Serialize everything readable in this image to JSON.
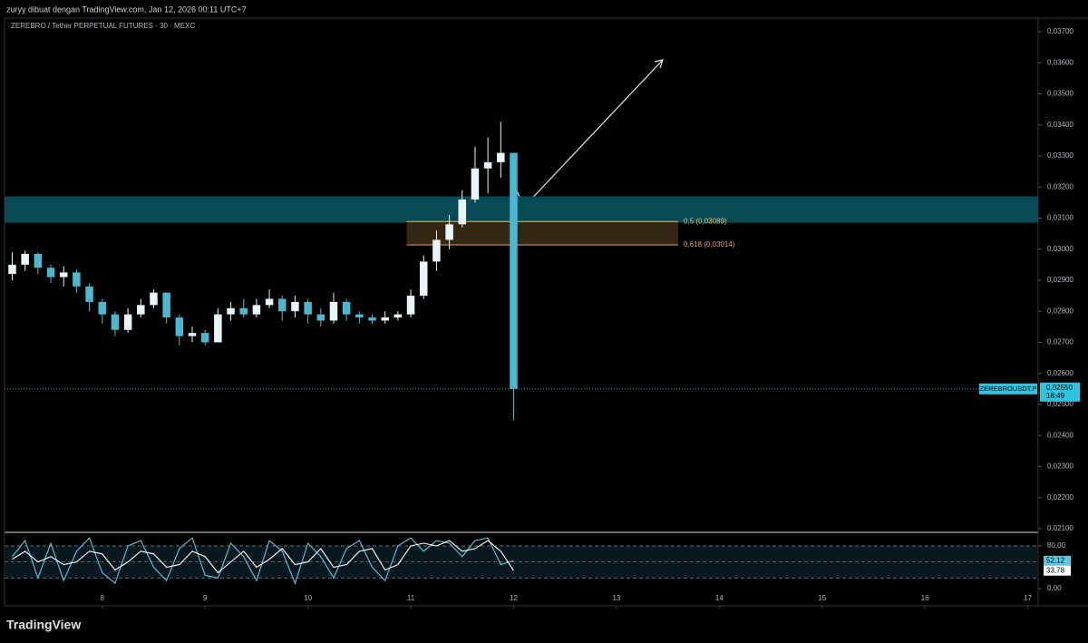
{
  "attribution": "zuryy dibuat dengan TradingView.com, Jan 12, 2026 00:11 UTC+7",
  "brand": "TradingView",
  "chart_data": [
    {
      "type": "candlestick",
      "title": "ZEREBRO / Tether PERPETUAL FUTURES · 30 · MEXC",
      "x": [
        7.125,
        7.25,
        7.375,
        7.5,
        7.625,
        7.75,
        7.875,
        8.0,
        8.125,
        8.25,
        8.375,
        8.5,
        8.625,
        8.75,
        8.875,
        9.0,
        9.125,
        9.25,
        9.375,
        9.5,
        9.625,
        9.75,
        9.875,
        10.0,
        10.125,
        10.25,
        10.375,
        10.5,
        10.625,
        10.75,
        10.875,
        11.0,
        11.125,
        11.25,
        11.375,
        11.5,
        11.625,
        11.75,
        11.875,
        12.0
      ],
      "open": [
        0.0292,
        0.0295,
        0.02985,
        0.0294,
        0.0291,
        0.02925,
        0.0288,
        0.0283,
        0.0279,
        0.0274,
        0.0279,
        0.0282,
        0.0286,
        0.0278,
        0.0272,
        0.0273,
        0.027,
        0.0279,
        0.0281,
        0.0279,
        0.0282,
        0.0284,
        0.028,
        0.0283,
        0.0279,
        0.0277,
        0.0283,
        0.0279,
        0.0278,
        0.0277,
        0.0278,
        0.0279,
        0.0285,
        0.0296,
        0.0303,
        0.0308,
        0.0316,
        0.0326,
        0.0328,
        0.0331
      ],
      "high": [
        0.0299,
        0.02995,
        0.0299,
        0.0295,
        0.02945,
        0.02935,
        0.0289,
        0.0284,
        0.028,
        0.0281,
        0.0284,
        0.0287,
        0.0286,
        0.0279,
        0.0275,
        0.0274,
        0.0281,
        0.0283,
        0.0284,
        0.0284,
        0.0287,
        0.0285,
        0.0285,
        0.0284,
        0.0281,
        0.0286,
        0.0284,
        0.028,
        0.0279,
        0.028,
        0.028,
        0.0287,
        0.0298,
        0.0306,
        0.0311,
        0.0319,
        0.0333,
        0.0336,
        0.0341,
        0.0331
      ],
      "low": [
        0.029,
        0.0293,
        0.0292,
        0.0289,
        0.0288,
        0.0286,
        0.028,
        0.0276,
        0.0272,
        0.0273,
        0.0278,
        0.0281,
        0.0276,
        0.0269,
        0.027,
        0.0269,
        0.027,
        0.0277,
        0.0278,
        0.0278,
        0.0281,
        0.0277,
        0.0278,
        0.0276,
        0.0275,
        0.0276,
        0.0277,
        0.0276,
        0.0276,
        0.0276,
        0.0277,
        0.0278,
        0.0284,
        0.0293,
        0.03,
        0.0307,
        0.0315,
        0.0318,
        0.0323,
        0.0245
      ],
      "close": [
        0.0295,
        0.02985,
        0.0294,
        0.0291,
        0.02925,
        0.0288,
        0.0283,
        0.0279,
        0.0274,
        0.0279,
        0.0282,
        0.0286,
        0.0278,
        0.0272,
        0.0273,
        0.027,
        0.0279,
        0.0281,
        0.0279,
        0.0282,
        0.0284,
        0.028,
        0.0283,
        0.0279,
        0.0277,
        0.0283,
        0.0279,
        0.0278,
        0.0277,
        0.0278,
        0.0279,
        0.0285,
        0.0296,
        0.0303,
        0.0308,
        0.0316,
        0.0326,
        0.0328,
        0.0331,
        0.0255
      ],
      "up_color": "#e8f6f9",
      "down_color": "#4cb8cf",
      "xlim": [
        7.05,
        17.1
      ],
      "xticks": [
        8,
        9,
        10,
        11,
        12,
        13,
        14,
        15,
        16,
        17
      ],
      "ylim": [
        0.02088,
        0.03744
      ],
      "yticks": [
        {
          "value": 0.021,
          "label": "0,02100"
        },
        {
          "value": 0.022,
          "label": "0,02200"
        },
        {
          "value": 0.023,
          "label": "0,02300"
        },
        {
          "value": 0.024,
          "label": "0,02400"
        },
        {
          "value": 0.025,
          "label": "0,02500"
        },
        {
          "value": 0.026,
          "label": "0,02600"
        },
        {
          "value": 0.027,
          "label": "0,02700"
        },
        {
          "value": 0.028,
          "label": "0,02800"
        },
        {
          "value": 0.029,
          "label": "0,02900"
        },
        {
          "value": 0.03,
          "label": "0,03000"
        },
        {
          "value": 0.031,
          "label": "0,03100"
        },
        {
          "value": 0.032,
          "label": "0,03200"
        },
        {
          "value": 0.033,
          "label": "0,03300"
        },
        {
          "value": 0.034,
          "label": "0,03400"
        },
        {
          "value": 0.035,
          "label": "0,03500"
        },
        {
          "value": 0.036,
          "label": "0,03600"
        },
        {
          "value": 0.037,
          "label": "0,03700"
        }
      ],
      "zone": {
        "low": 0.03085,
        "high": 0.0317,
        "color": "#0a4a55"
      },
      "fib": {
        "start": 10.96,
        "end": 13.6,
        "color": "#3a2a14",
        "levels": [
          {
            "value": 0.03089,
            "label": "0,5 (0,03089)",
            "color": "#d6c46a"
          },
          {
            "value": 0.03014,
            "label": "0,618 (0,03014)",
            "color": "#e8a060"
          }
        ]
      },
      "last_price": {
        "value": 0.0255,
        "label": "0,02550"
      },
      "symbol": "ZEREBROUSDT.P",
      "countdown": "18:49",
      "tag_color": "#2ec4e0"
    },
    {
      "type": "line",
      "x": [
        7.125,
        7.25,
        7.375,
        7.5,
        7.625,
        7.75,
        7.875,
        8.0,
        8.125,
        8.25,
        8.375,
        8.5,
        8.625,
        8.75,
        8.875,
        9.0,
        9.125,
        9.25,
        9.375,
        9.5,
        9.625,
        9.75,
        9.875,
        10.0,
        10.125,
        10.25,
        10.375,
        10.5,
        10.625,
        10.75,
        10.875,
        11.0,
        11.125,
        11.25,
        11.375,
        11.5,
        11.625,
        11.75,
        11.875,
        12.0
      ],
      "series": [
        {
          "color": "#5ec8e0",
          "values": [
            60,
            90,
            20,
            85,
            15,
            70,
            95,
            30,
            10,
            80,
            90,
            40,
            15,
            75,
            95,
            25,
            20,
            85,
            60,
            15,
            90,
            70,
            10,
            85,
            60,
            20,
            75,
            90,
            40,
            15,
            80,
            95,
            70,
            90,
            85,
            60,
            90,
            95,
            45,
            52.12
          ],
          "last_label": {
            "value": 52.12,
            "label": "52,12"
          }
        },
        {
          "color": "#ffffff",
          "values": [
            55,
            70,
            50,
            60,
            45,
            50,
            70,
            65,
            35,
            50,
            70,
            65,
            40,
            45,
            70,
            60,
            30,
            50,
            70,
            40,
            55,
            75,
            45,
            50,
            75,
            40,
            45,
            70,
            75,
            35,
            45,
            80,
            85,
            80,
            90,
            70,
            75,
            90,
            70,
            33.78
          ],
          "last_label": {
            "value": 33.78,
            "label": "33,78"
          }
        }
      ],
      "ylim": [
        -27,
        102
      ],
      "yticks": [
        {
          "value": 80,
          "label": "80,00"
        },
        {
          "value": 0,
          "label": "0,00"
        }
      ],
      "levels": [
        20,
        50,
        80
      ]
    }
  ]
}
